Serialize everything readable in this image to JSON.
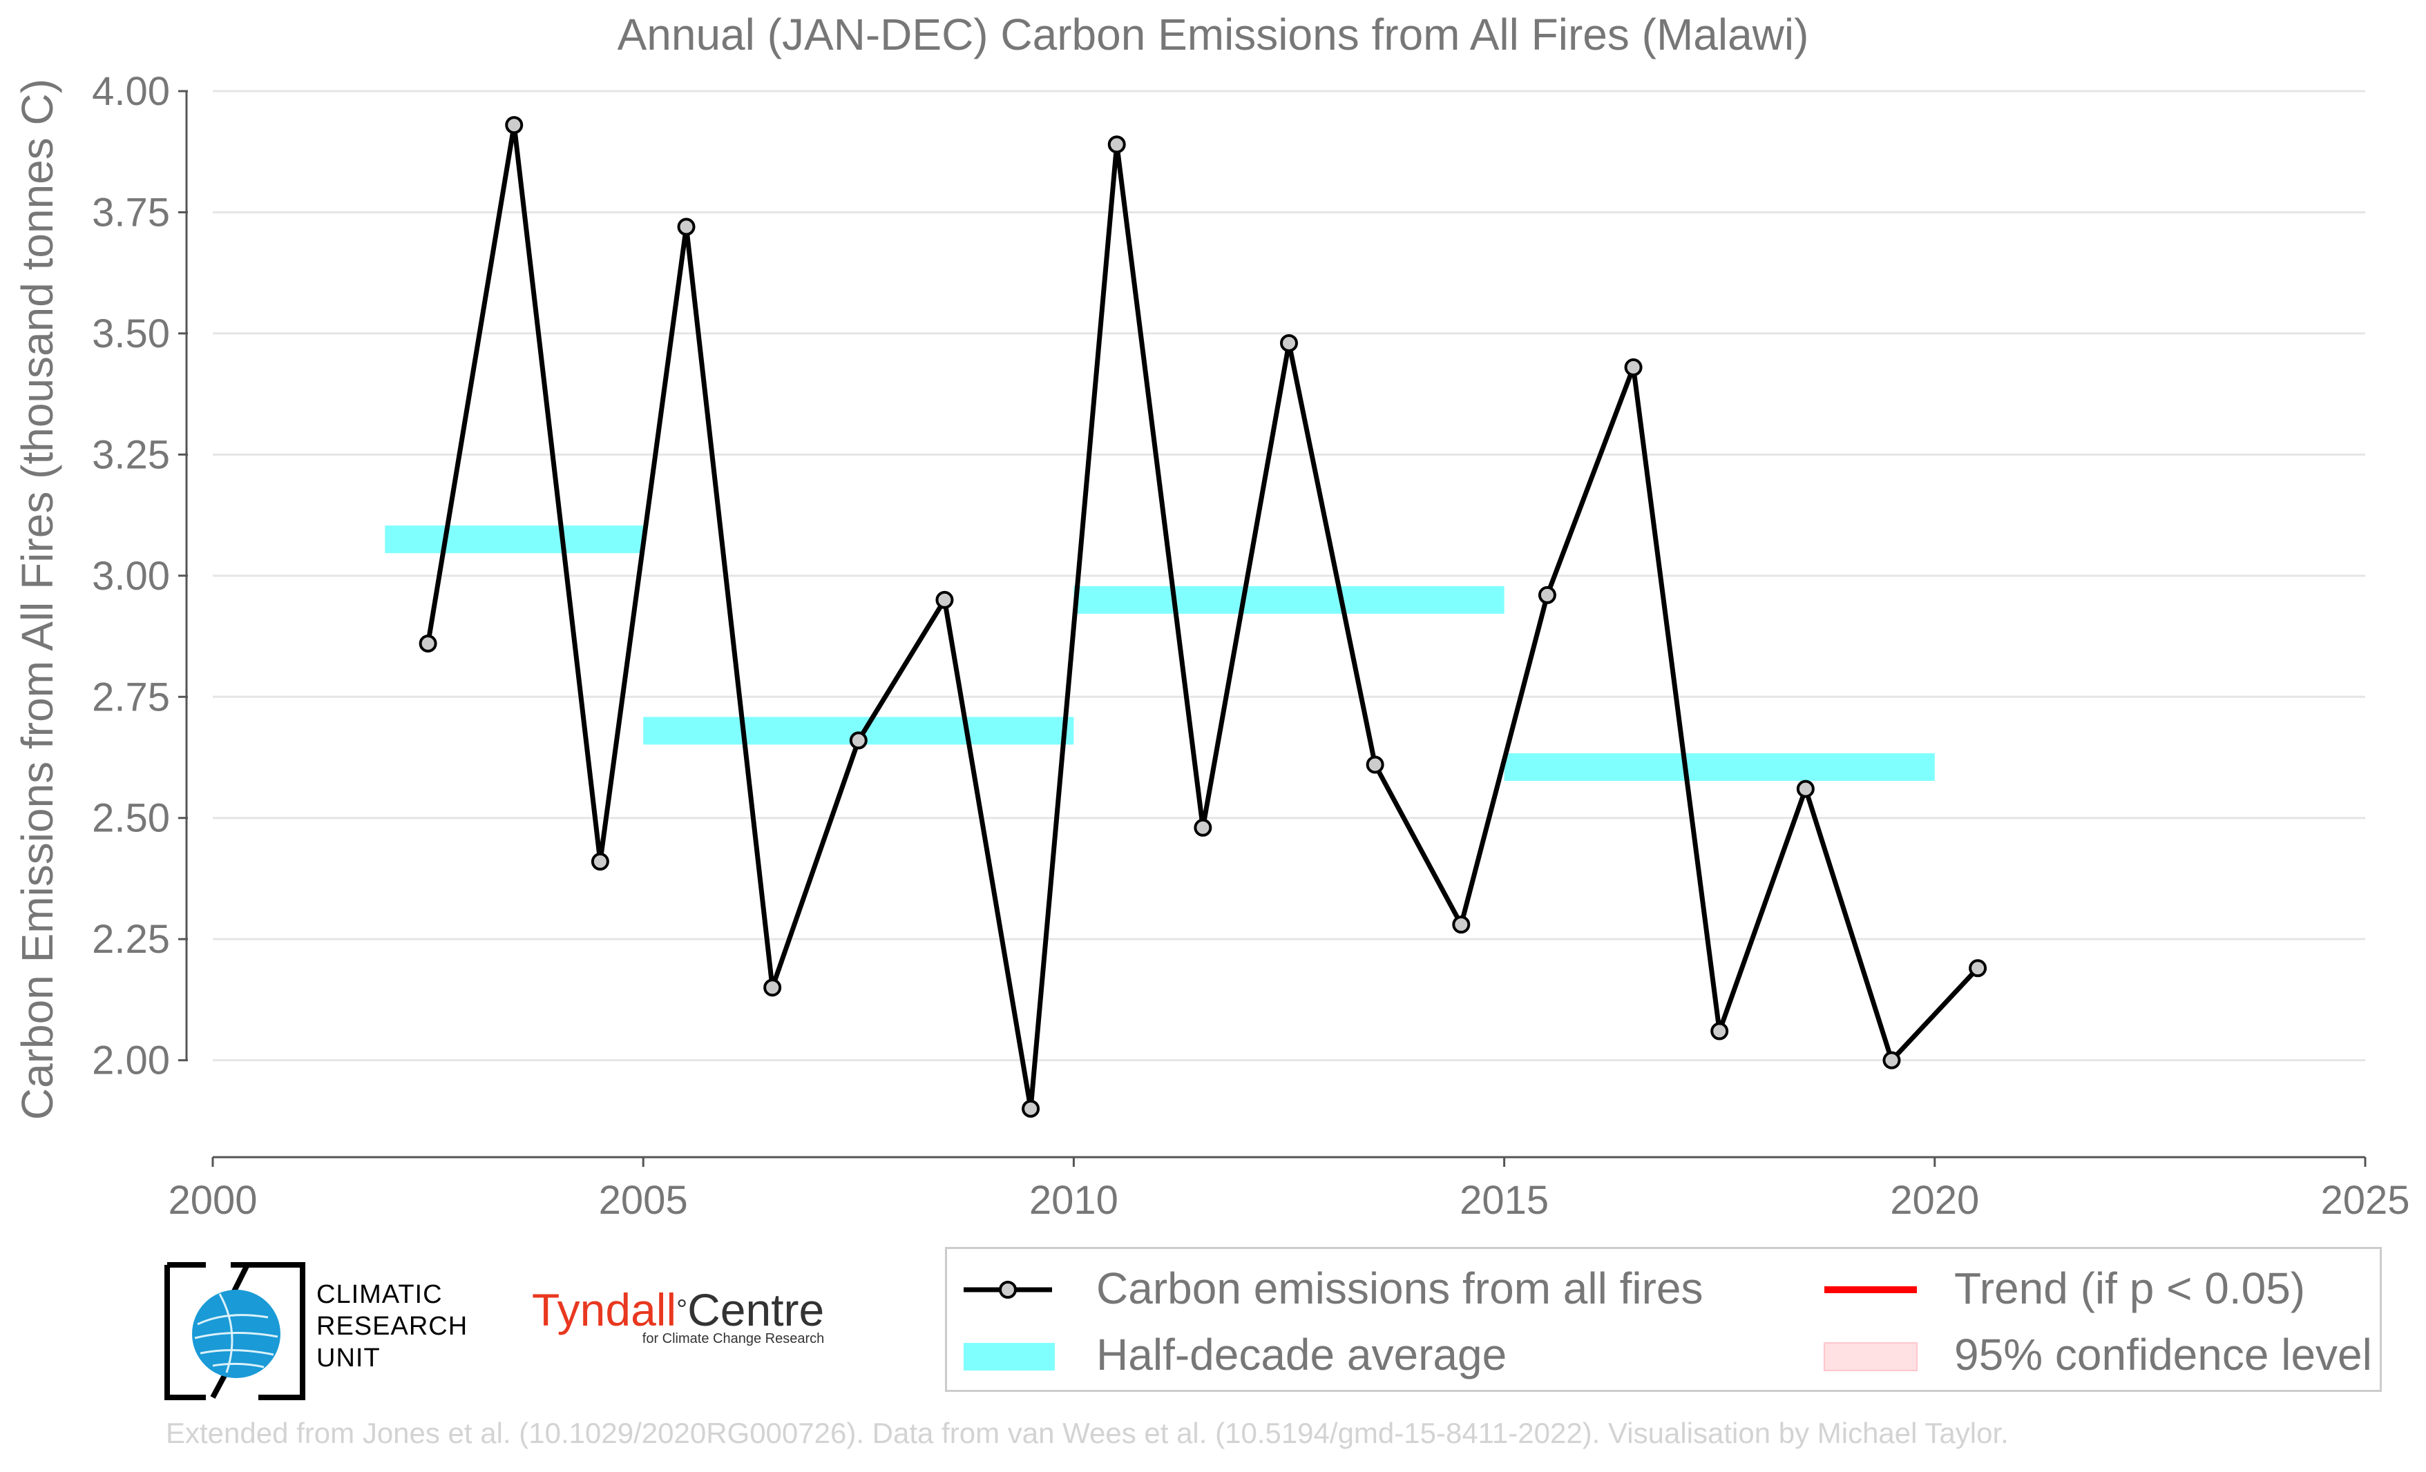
{
  "chart_data": {
    "type": "line",
    "title": "Annual (JAN-DEC) Carbon Emissions from All Fires (Malawi)",
    "ylabel": "Carbon Emissions from All Fires (thousand tonnes C)",
    "xlabel": "",
    "xlim": [
      2000,
      2025
    ],
    "ylim": [
      1.8,
      4.0
    ],
    "x_ticks": [
      2000,
      2005,
      2010,
      2015,
      2020,
      2025
    ],
    "x_tick_labels": [
      "2000",
      "2005",
      "2010",
      "2015",
      "2020",
      "2025"
    ],
    "y_ticks": [
      2.0,
      2.25,
      2.5,
      2.75,
      3.0,
      3.25,
      3.5,
      3.75,
      4.0
    ],
    "y_tick_labels": [
      "2.00",
      "2.25",
      "2.50",
      "2.75",
      "3.00",
      "3.25",
      "3.50",
      "3.75",
      "4.00"
    ],
    "grid": "horizontal",
    "legend_placement": "below",
    "series": [
      {
        "name": "Carbon emissions from all fires",
        "color": "#000000",
        "marker_fill": "#cccccc",
        "x": [
          2002.5,
          2003.5,
          2004.5,
          2005.5,
          2006.5,
          2007.5,
          2008.5,
          2009.5,
          2010.5,
          2011.5,
          2012.5,
          2013.5,
          2014.5,
          2015.5,
          2016.5,
          2017.5,
          2018.5,
          2019.5,
          2020.5
        ],
        "y": [
          2.86,
          3.93,
          2.41,
          3.72,
          2.15,
          2.66,
          2.95,
          1.9,
          3.89,
          2.48,
          3.48,
          2.61,
          2.28,
          2.96,
          3.43,
          2.06,
          2.56,
          2.0,
          2.19
        ]
      }
    ],
    "half_decade_averages": {
      "name": "Half-decade average",
      "color": "#80ffff",
      "segments": [
        {
          "x_start": 2002,
          "x_end": 2005,
          "y": 3.075
        },
        {
          "x_start": 2005,
          "x_end": 2010,
          "y": 2.68
        },
        {
          "x_start": 2010,
          "x_end": 2015,
          "y": 2.95
        },
        {
          "x_start": 2015,
          "x_end": 2020,
          "y": 2.605
        }
      ]
    },
    "legend": [
      {
        "label": "Carbon emissions from all fires",
        "kind": "line-marker",
        "color": "#000000"
      },
      {
        "label": "Trend (if p < 0.05)",
        "kind": "line",
        "color": "#ff0000"
      },
      {
        "label": "Half-decade average",
        "kind": "band",
        "color": "#80ffff"
      },
      {
        "label": "95% confidence level",
        "kind": "band",
        "color": "#ffe0e3"
      }
    ]
  },
  "logos": {
    "cru_lines": [
      "CLIMATIC",
      "RESEARCH",
      "UNIT"
    ],
    "tyndall_main_1": "Tyndall",
    "tyndall_degree": "°",
    "tyndall_main_2": "Centre",
    "tyndall_sub": "for Climate Change Research"
  },
  "credit": "Extended from Jones et al. (10.1029/2020RG000726). Data from van Wees et al. (10.5194/gmd-15-8411-2022). Visualisation by Michael Taylor."
}
